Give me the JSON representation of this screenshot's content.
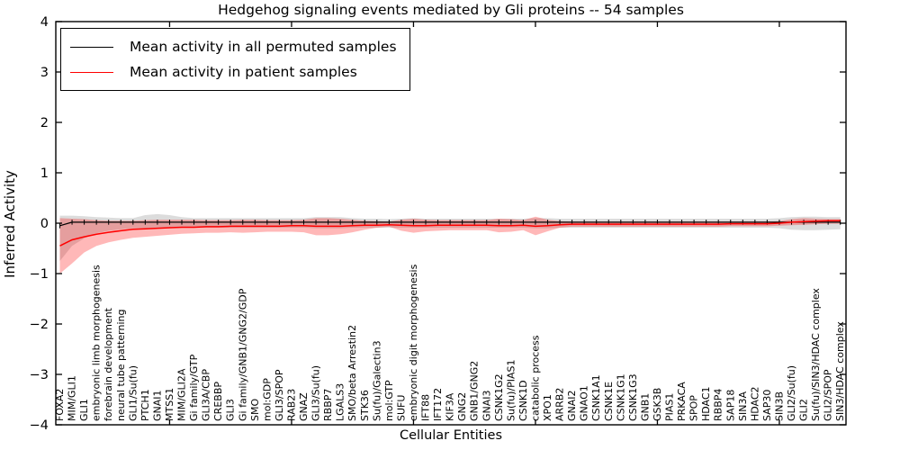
{
  "figure": {
    "title": "Hedgehog signaling events mediated by Gli proteins -- 54 samples",
    "xlabel": "Cellular Entities",
    "ylabel": "Inferred Activity"
  },
  "legend": {
    "position": "upper left",
    "entries": [
      {
        "label": "Mean activity in all permuted samples",
        "color": "#000000"
      },
      {
        "label": "Mean activity in patient samples",
        "color": "#ff0000"
      }
    ]
  },
  "chart_data": {
    "type": "line",
    "title": "Hedgehog signaling events mediated by Gli proteins -- 54 samples",
    "xlabel": "Cellular Entities",
    "ylabel": "Inferred Activity",
    "ylim": [
      -4,
      4
    ],
    "yticks": [
      -4,
      -3,
      -2,
      -1,
      0,
      1,
      2,
      3,
      4
    ],
    "xticks_every_10_at": [
      10,
      20,
      30,
      40,
      50,
      60
    ],
    "grid": false,
    "legend_position": "upper left",
    "background": "#ffffff",
    "categories": [
      "FOXA2",
      "MIM/GLI1",
      "GLI1",
      "embryonic limb morphogenesis",
      "forebrain development",
      "neural tube patterning",
      "GLI1/Su(fu)",
      "PTCH1",
      "GNAI1",
      "MTSS1",
      "MIM/GLI2A",
      "Gi family/GTP",
      "GLI3A/CBP",
      "CREBBP",
      "GLI3",
      "Gi family/GNB1/GNG2/GDP",
      "SMO",
      "mol:GDP",
      "GLI3/SPOP",
      "RAB23",
      "GNAZ",
      "GLI3/Su(fu)",
      "RBBP7",
      "LGALS3",
      "SMO/beta Arrestin2",
      "STK36",
      "Su(fu)/Galectin3",
      "mol:GTP",
      "SUFU",
      "embryonic digit morphogenesis",
      "IFT88",
      "IFT172",
      "KIF3A",
      "GNG2",
      "GNB1/GNG2",
      "GNAI3",
      "CSNK1G2",
      "Su(fu)/PIAS1",
      "CSNK1D",
      "catabolic process",
      "XPO1",
      "ARRB2",
      "GNAI2",
      "GNAO1",
      "CSNK1A1",
      "CSNK1E",
      "CSNK1G1",
      "CSNK1G3",
      "GNB1",
      "GSK3B",
      "PIAS1",
      "PRKACA",
      "SPOP",
      "HDAC1",
      "RBBP4",
      "SAP18",
      "SIN3A",
      "HDAC2",
      "SAP30",
      "SIN3B",
      "GLI2/Su(fu)",
      "GLI2",
      "Su(fu)/SIN3/HDAC complex",
      "GLI2/SPOP",
      "SIN3/HDAC complex"
    ],
    "series": [
      {
        "name": "Mean activity in all permuted samples",
        "color": "#000000",
        "band_color": "#c0c0c0",
        "band_opacity": 0.55,
        "values": [
          -0.05,
          0.02,
          0.02,
          0.02,
          0.02,
          0.02,
          0.02,
          0.02,
          0.02,
          0.02,
          0.02,
          0.02,
          0.02,
          0.02,
          0.02,
          0.02,
          0.02,
          0.02,
          0.02,
          0.02,
          0.02,
          0.02,
          0.02,
          0.02,
          0.02,
          0.02,
          0.02,
          0.02,
          0.02,
          0.02,
          0.02,
          0.02,
          0.02,
          0.02,
          0.02,
          0.02,
          0.02,
          0.02,
          0.02,
          0.02,
          0.02,
          0.02,
          0.02,
          0.02,
          0.02,
          0.02,
          0.02,
          0.02,
          0.02,
          0.02,
          0.02,
          0.02,
          0.02,
          0.02,
          0.02,
          0.02,
          0.02,
          0.02,
          0.02,
          0.02,
          0.02,
          0.02,
          0.02,
          0.02,
          0.02
        ],
        "band_upper": [
          0.15,
          0.15,
          0.14,
          0.12,
          0.11,
          0.1,
          0.1,
          0.16,
          0.18,
          0.16,
          0.12,
          0.1,
          0.1,
          0.1,
          0.1,
          0.1,
          0.1,
          0.1,
          0.1,
          0.1,
          0.1,
          0.12,
          0.12,
          0.12,
          0.1,
          0.09,
          0.09,
          0.08,
          0.09,
          0.1,
          0.09,
          0.09,
          0.09,
          0.09,
          0.09,
          0.09,
          0.09,
          0.09,
          0.09,
          0.1,
          0.1,
          0.09,
          0.09,
          0.09,
          0.09,
          0.09,
          0.09,
          0.09,
          0.09,
          0.09,
          0.09,
          0.09,
          0.09,
          0.09,
          0.09,
          0.09,
          0.09,
          0.09,
          0.09,
          0.1,
          0.12,
          0.13,
          0.13,
          0.12,
          0.12
        ],
        "band_lower": [
          -0.75,
          -0.45,
          -0.3,
          -0.2,
          -0.15,
          -0.12,
          -0.1,
          -0.1,
          -0.1,
          -0.1,
          -0.09,
          -0.09,
          -0.09,
          -0.09,
          -0.09,
          -0.09,
          -0.09,
          -0.09,
          -0.09,
          -0.09,
          -0.09,
          -0.1,
          -0.1,
          -0.1,
          -0.09,
          -0.09,
          -0.09,
          -0.09,
          -0.09,
          -0.09,
          -0.09,
          -0.09,
          -0.09,
          -0.09,
          -0.09,
          -0.09,
          -0.09,
          -0.09,
          -0.09,
          -0.1,
          -0.1,
          -0.09,
          -0.09,
          -0.09,
          -0.09,
          -0.09,
          -0.09,
          -0.09,
          -0.09,
          -0.09,
          -0.09,
          -0.09,
          -0.09,
          -0.09,
          -0.09,
          -0.09,
          -0.09,
          -0.09,
          -0.09,
          -0.1,
          -0.13,
          -0.14,
          -0.14,
          -0.13,
          -0.12
        ]
      },
      {
        "name": "Mean activity in patient samples",
        "color": "#ff0000",
        "band_color": "#ff0000",
        "band_opacity": 0.28,
        "values": [
          -0.45,
          -0.33,
          -0.27,
          -0.22,
          -0.18,
          -0.15,
          -0.12,
          -0.11,
          -0.1,
          -0.09,
          -0.08,
          -0.08,
          -0.07,
          -0.07,
          -0.06,
          -0.06,
          -0.06,
          -0.06,
          -0.06,
          -0.05,
          -0.05,
          -0.06,
          -0.06,
          -0.06,
          -0.05,
          -0.04,
          -0.04,
          -0.03,
          -0.04,
          -0.05,
          -0.05,
          -0.04,
          -0.04,
          -0.04,
          -0.04,
          -0.04,
          -0.05,
          -0.05,
          -0.04,
          -0.06,
          -0.05,
          -0.03,
          -0.02,
          -0.02,
          -0.02,
          -0.02,
          -0.02,
          -0.02,
          -0.02,
          -0.02,
          -0.02,
          -0.02,
          -0.02,
          -0.02,
          -0.02,
          -0.01,
          -0.01,
          -0.01,
          -0.01,
          0.0,
          0.02,
          0.03,
          0.04,
          0.05,
          0.05
        ],
        "band_upper": [
          0.1,
          0.09,
          0.08,
          0.06,
          0.05,
          0.05,
          0.05,
          0.06,
          0.07,
          0.07,
          0.07,
          0.07,
          0.06,
          0.06,
          0.06,
          0.07,
          0.07,
          0.06,
          0.06,
          0.06,
          0.07,
          0.1,
          0.1,
          0.09,
          0.07,
          0.05,
          0.04,
          0.03,
          0.07,
          0.09,
          0.07,
          0.06,
          0.06,
          0.06,
          0.06,
          0.06,
          0.09,
          0.08,
          0.06,
          0.13,
          0.07,
          0.04,
          0.03,
          0.03,
          0.03,
          0.03,
          0.03,
          0.03,
          0.03,
          0.03,
          0.03,
          0.03,
          0.03,
          0.03,
          0.03,
          0.03,
          0.03,
          0.03,
          0.03,
          0.04,
          0.08,
          0.1,
          0.09,
          0.08,
          0.08
        ],
        "band_lower": [
          -1.0,
          -0.8,
          -0.58,
          -0.45,
          -0.38,
          -0.33,
          -0.29,
          -0.27,
          -0.25,
          -0.23,
          -0.21,
          -0.2,
          -0.19,
          -0.19,
          -0.18,
          -0.19,
          -0.18,
          -0.17,
          -0.17,
          -0.17,
          -0.18,
          -0.24,
          -0.24,
          -0.22,
          -0.18,
          -0.13,
          -0.09,
          -0.07,
          -0.15,
          -0.19,
          -0.16,
          -0.15,
          -0.14,
          -0.14,
          -0.14,
          -0.14,
          -0.18,
          -0.17,
          -0.14,
          -0.24,
          -0.16,
          -0.09,
          -0.07,
          -0.07,
          -0.07,
          -0.07,
          -0.07,
          -0.07,
          -0.07,
          -0.07,
          -0.07,
          -0.07,
          -0.07,
          -0.07,
          -0.07,
          -0.06,
          -0.06,
          -0.06,
          -0.06,
          -0.05,
          -0.04,
          -0.03,
          -0.02,
          -0.01,
          -0.01
        ]
      }
    ]
  }
}
